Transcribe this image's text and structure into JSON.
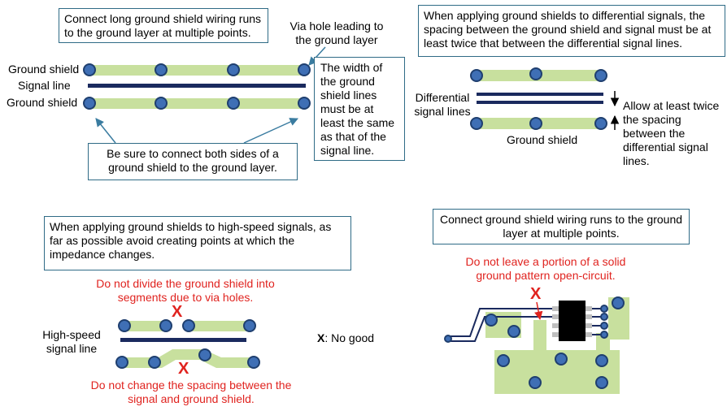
{
  "tl": {
    "note_top": "Connect long ground shield wiring runs to the ground layer at multiple points.",
    "via_label": "Via hole leading to the ground layer",
    "ground_shield_top": "Ground shield",
    "signal_line": "Signal line",
    "ground_shield_bottom": "Ground shield",
    "width_note": "The width of the ground shield lines must be at least the same as that of the signal line.",
    "connect_note": "Be sure to connect both sides of a ground shield to the ground layer."
  },
  "tr": {
    "note": "When applying ground shields to differential signals, the spacing between the ground shield and signal must be at least twice that between the differential signal lines.",
    "diff_label": "Differential signal lines",
    "ground_shield": "Ground shield",
    "spacing_note": "Allow at least twice the spacing between the differential signal lines."
  },
  "bl": {
    "note": "When applying ground shields to high-speed signals, as far as possible avoid creating points at which the impedance changes.",
    "warn_divide": "Do not divide the ground shield into segments due to via holes.",
    "hs_label": "High-speed signal line",
    "x_mark": "X",
    "x_legend_mark": "X",
    "x_legend_text": ": No good",
    "warn_spacing": "Do not change the spacing between the signal and ground shield."
  },
  "br": {
    "note": "Connect ground shield wiring runs to the ground layer at multiple points.",
    "warn": "Do not leave a portion of a solid ground pattern open-circuit.",
    "x_mark": "X"
  },
  "colors": {
    "shield_fill": "#c8e09e",
    "via_fill": "#3f6fb5",
    "via_ring": "#1f3f6f",
    "signal": "#1a2a5e",
    "box_border": "#2f6b86",
    "warning": "#e0231f",
    "arrow": "#3a7ca0"
  }
}
